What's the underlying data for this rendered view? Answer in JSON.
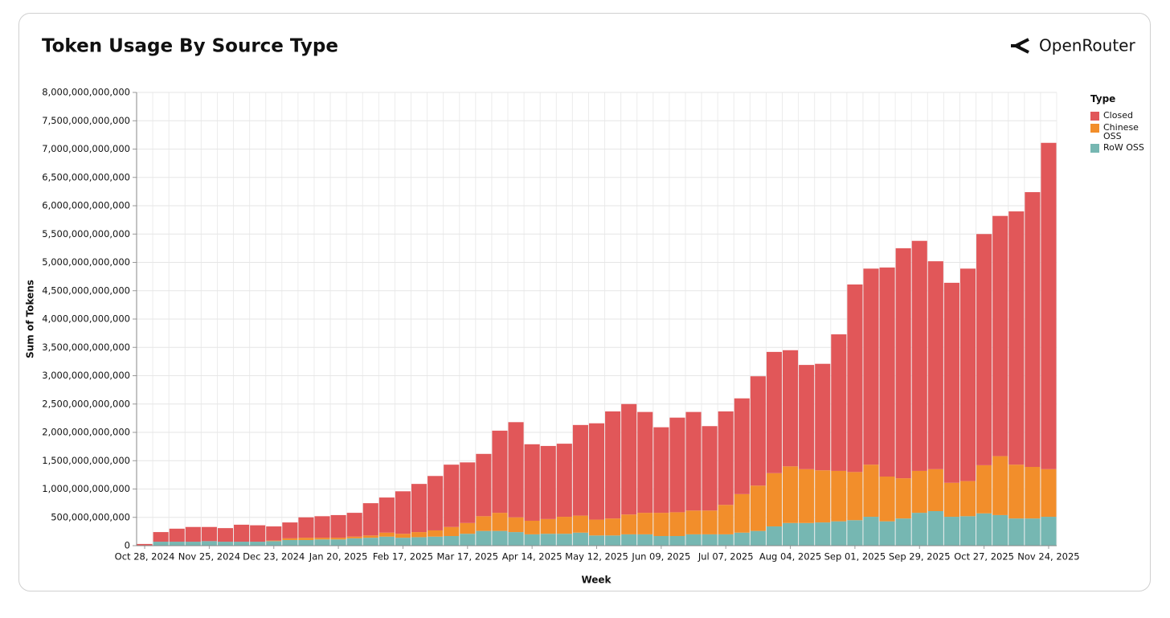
{
  "brand": "OpenRouter",
  "chart_data": {
    "type": "stacked-bar",
    "title": "Token Usage By Source Type",
    "x_label": "Week",
    "y_label": "Sum of Tokens",
    "legend_title": "Type",
    "legend_position": "right",
    "grid": true,
    "categories": [
      "Oct 28, 2024",
      null,
      null,
      null,
      "Nov 25, 2024",
      null,
      null,
      null,
      "Dec 23, 2024",
      null,
      null,
      null,
      "Jan 20, 2025",
      null,
      null,
      null,
      "Feb 17, 2025",
      null,
      null,
      null,
      "Mar 17, 2025",
      null,
      null,
      null,
      "Apr 14, 2025",
      null,
      null,
      null,
      "May 12, 2025",
      null,
      null,
      null,
      "Jun 09, 2025",
      null,
      null,
      null,
      "Jul 07, 2025",
      null,
      null,
      null,
      "Aug 04, 2025",
      null,
      null,
      null,
      "Sep 01, 2025",
      null,
      null,
      null,
      "Sep 29, 2025",
      null,
      null,
      null,
      "Oct 27, 2025",
      null,
      null,
      null,
      "Nov 24, 2025"
    ],
    "series": [
      {
        "name": "Closed",
        "color": "#e15759",
        "values": [
          25000000000.0,
          170000000000.0,
          230000000000.0,
          260000000000.0,
          250000000000.0,
          240000000000.0,
          300000000000.0,
          290000000000.0,
          250000000000.0,
          280000000000.0,
          360000000000.0,
          380000000000.0,
          400000000000.0,
          420000000000.0,
          570000000000.0,
          620000000000.0,
          750000000000.0,
          850000000000.0,
          960000000000.0,
          1100000000000.0,
          1070000000000.0,
          1100000000000.0,
          1450000000000.0,
          1680000000000.0,
          1350000000000.0,
          1290000000000.0,
          1290000000000.0,
          1600000000000.0,
          1700000000000.0,
          1890000000000.0,
          1950000000000.0,
          1780000000000.0,
          1510000000000.0,
          1670000000000.0,
          1740000000000.0,
          1490000000000.0,
          1650000000000.0,
          1690000000000.0,
          1930000000000.0,
          2140000000000.0,
          2050000000000.0,
          1840000000000.0,
          1880000000000.0,
          2410000000000.0,
          3310000000000.0,
          3460000000000.0,
          3690000000000.0,
          4060000000000.0,
          4060000000000.0,
          3670000000000.0,
          3530000000000.0,
          3750000000000.0,
          4080000000000.0,
          4240000000000.0,
          4470000000000.0,
          4850000000000.0,
          5760000000000.0
        ]
      },
      {
        "name": "Chinese OSS",
        "color": "#f28e2b",
        "values": [
          0,
          0,
          0,
          0,
          0,
          0,
          0,
          0,
          10000000000.0,
          30000000000.0,
          40000000000.0,
          30000000000.0,
          30000000000.0,
          30000000000.0,
          40000000000.0,
          70000000000.0,
          70000000000.0,
          90000000000.0,
          110000000000.0,
          160000000000.0,
          190000000000.0,
          260000000000.0,
          320000000000.0,
          260000000000.0,
          240000000000.0,
          260000000000.0,
          300000000000.0,
          300000000000.0,
          280000000000.0,
          300000000000.0,
          350000000000.0,
          380000000000.0,
          410000000000.0,
          420000000000.0,
          420000000000.0,
          420000000000.0,
          520000000000.0,
          680000000000.0,
          800000000000.0,
          940000000000.0,
          1000000000000.0,
          950000000000.0,
          920000000000.0,
          890000000000.0,
          850000000000.0,
          920000000000.0,
          790000000000.0,
          710000000000.0,
          740000000000.0,
          740000000000.0,
          600000000000.0,
          620000000000.0,
          850000000000.0,
          1040000000000.0,
          950000000000.0,
          910000000000.0,
          840000000000.0
        ]
      },
      {
        "name": "RoW OSS",
        "color": "#76b7b2",
        "values": [
          5000000000.0,
          70000000000.0,
          70000000000.0,
          70000000000.0,
          80000000000.0,
          70000000000.0,
          70000000000.0,
          70000000000.0,
          80000000000.0,
          100000000000.0,
          100000000000.0,
          110000000000.0,
          110000000000.0,
          130000000000.0,
          140000000000.0,
          160000000000.0,
          140000000000.0,
          150000000000.0,
          160000000000.0,
          170000000000.0,
          210000000000.0,
          260000000000.0,
          260000000000.0,
          240000000000.0,
          200000000000.0,
          210000000000.0,
          210000000000.0,
          230000000000.0,
          180000000000.0,
          180000000000.0,
          200000000000.0,
          200000000000.0,
          170000000000.0,
          170000000000.0,
          200000000000.0,
          200000000000.0,
          200000000000.0,
          230000000000.0,
          260000000000.0,
          340000000000.0,
          400000000000.0,
          400000000000.0,
          410000000000.0,
          430000000000.0,
          450000000000.0,
          510000000000.0,
          430000000000.0,
          480000000000.0,
          580000000000.0,
          610000000000.0,
          510000000000.0,
          520000000000.0,
          570000000000.0,
          540000000000.0,
          480000000000.0,
          480000000000.0,
          510000000000.0
        ]
      }
    ],
    "ylim": [
      0,
      8000000000000
    ],
    "yticks": [
      0,
      {
        "value": 500000000000,
        "label": "500,000,000,000"
      },
      {
        "value": 1000000000000,
        "label": "1,000,000,000,000"
      },
      {
        "value": 1500000000000,
        "label": "1,500,000,000,000"
      },
      {
        "value": 2000000000000,
        "label": "2,000,000,000,000"
      },
      {
        "value": 2500000000000,
        "label": "2,500,000,000,000"
      },
      {
        "value": 3000000000000,
        "label": "3,000,000,000,000"
      },
      {
        "value": 3500000000000,
        "label": "3,500,000,000,000"
      },
      {
        "value": 4000000000000,
        "label": "4,000,000,000,000"
      },
      {
        "value": 4500000000000,
        "label": "4,500,000,000,000"
      },
      {
        "value": 5000000000000,
        "label": "5,000,000,000,000"
      },
      {
        "value": 5500000000000,
        "label": "5,500,000,000,000"
      },
      {
        "value": 6000000000000,
        "label": "6,000,000,000,000"
      },
      {
        "value": 6500000000000,
        "label": "6,500,000,000,000"
      },
      {
        "value": 7000000000000,
        "label": "7,000,000,000,000"
      },
      {
        "value": 7500000000000,
        "label": "7,500,000,000,000"
      },
      {
        "value": 8000000000000,
        "label": "8,000,000,000,000"
      }
    ]
  }
}
